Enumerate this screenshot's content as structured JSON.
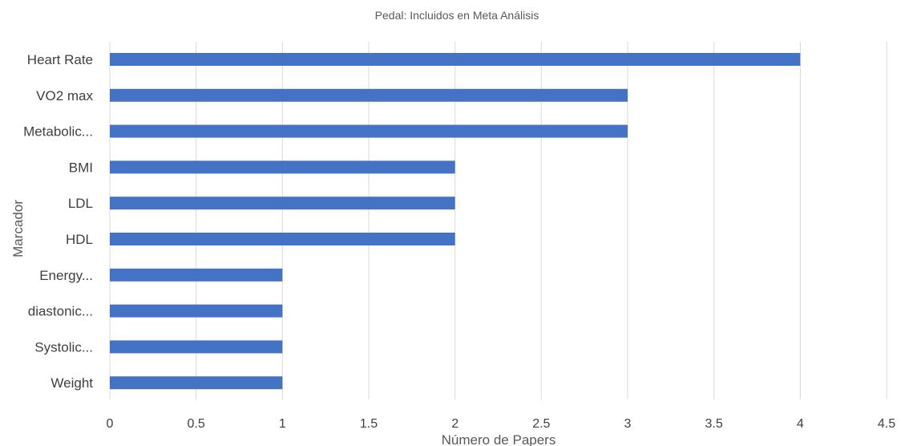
{
  "chart_data": {
    "type": "bar",
    "orientation": "horizontal",
    "title": "Pedal: Incluidos en Meta Análisis",
    "xlabel": "Número de Papers",
    "ylabel": "Marcador",
    "categories": [
      "Heart Rate",
      "VO2 max",
      "Metabolic...",
      "BMI",
      "LDL",
      "HDL",
      "Energy...",
      "diastonic...",
      "Systolic...",
      "Weight"
    ],
    "values": [
      4,
      3,
      3,
      2,
      2,
      2,
      1,
      1,
      1,
      1
    ],
    "xlim": [
      0,
      4.5
    ],
    "xticks": [
      "0",
      "0.5",
      "1",
      "1.5",
      "2",
      "2.5",
      "3",
      "3.5",
      "4",
      "4.5"
    ],
    "xtick_values": [
      0,
      0.5,
      1,
      1.5,
      2,
      2.5,
      3,
      3.5,
      4,
      4.5
    ],
    "grid": "vertical",
    "legend": "none",
    "bar_color": "#4472c4"
  }
}
